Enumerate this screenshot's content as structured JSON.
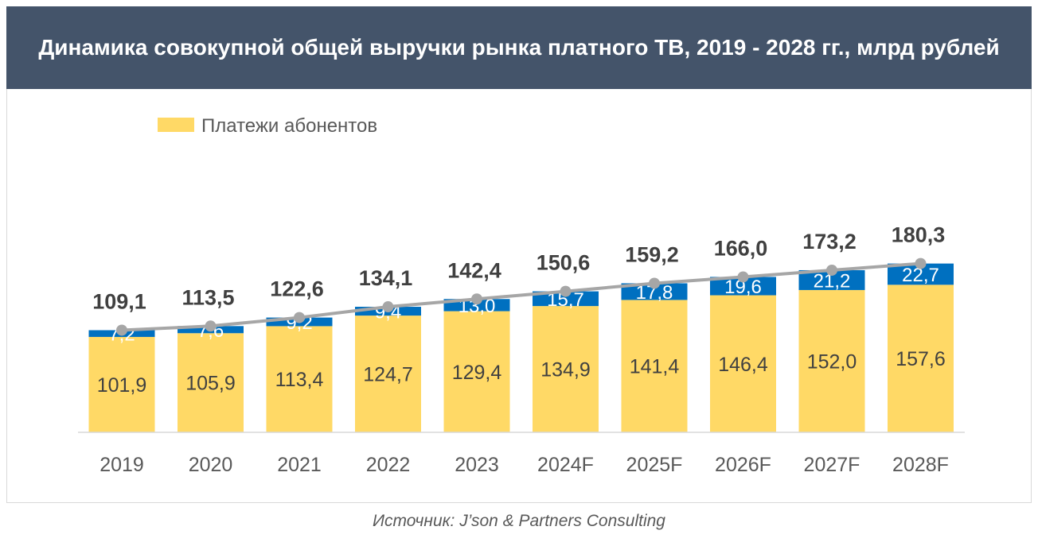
{
  "title": "Динамика совокупной общей выручки рынка платного ТВ, 2019 - 2028 гг., млрд рублей",
  "source": "Источник: J’son & Partners Consulting",
  "colors": {
    "subscriber_payments": "#ffd966",
    "other_segment": "#0070c0",
    "total_line": "#a6a6a6",
    "title_bg": "#44546a"
  },
  "chart_data": {
    "type": "bar",
    "stacked": true,
    "categories": [
      "2019",
      "2020",
      "2021",
      "2022",
      "2023",
      "2024F",
      "2025F",
      "2026F",
      "2027F",
      "2028F"
    ],
    "series": [
      {
        "name": "Платежи абонентов",
        "values": [
          101.9,
          105.9,
          113.4,
          124.7,
          129.4,
          134.9,
          141.4,
          146.4,
          152.0,
          157.6
        ],
        "labels": [
          "101,9",
          "105,9",
          "113,4",
          "124,7",
          "129,4",
          "134,9",
          "141,4",
          "146,4",
          "152,0",
          "157,6"
        ]
      },
      {
        "values": [
          7.2,
          7.6,
          9.2,
          9.4,
          13.0,
          15.7,
          17.8,
          19.6,
          21.2,
          22.7
        ],
        "labels": [
          "7,2",
          "7,6",
          "9,2",
          "9,4",
          "13,0",
          "15,7",
          "17,8",
          "19,6",
          "21,2",
          "22,7"
        ]
      }
    ],
    "totals": {
      "type": "line",
      "values": [
        109.1,
        113.5,
        122.6,
        134.1,
        142.4,
        150.6,
        159.2,
        166.0,
        173.2,
        180.3
      ],
      "labels": [
        "109,1",
        "113,5",
        "122,6",
        "134,1",
        "142,4",
        "150,6",
        "159,2",
        "166,0",
        "173,2",
        "180,3"
      ]
    },
    "legend": {
      "position": "top-left",
      "entries": [
        "Платежи абонентов"
      ]
    },
    "grid": false,
    "ylim": [
      0,
      190
    ]
  }
}
